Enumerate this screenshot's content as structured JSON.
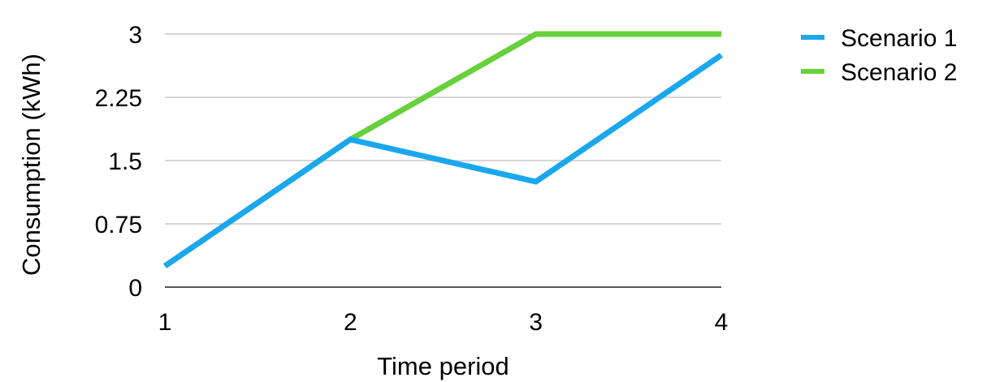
{
  "chart_data": {
    "type": "line",
    "title": "",
    "xlabel": "Time period",
    "ylabel": "Consumption (kWh)",
    "x": [
      1,
      2,
      3,
      4
    ],
    "xticks": [
      "1",
      "2",
      "3",
      "4"
    ],
    "xlim": [
      1,
      4
    ],
    "ylim": [
      0,
      3
    ],
    "yticks": [
      "0",
      "0.75",
      "1.5",
      "2.25",
      "3"
    ],
    "grid": true,
    "legend": "top-right",
    "series": [
      {
        "name": "Scenario 1",
        "color": "#1aa7ef",
        "values": [
          0.25,
          1.75,
          1.25,
          2.75
        ]
      },
      {
        "name": "Scenario 2",
        "color": "#66d13a",
        "values": [
          0.25,
          1.75,
          3.0,
          3.0
        ]
      }
    ]
  }
}
